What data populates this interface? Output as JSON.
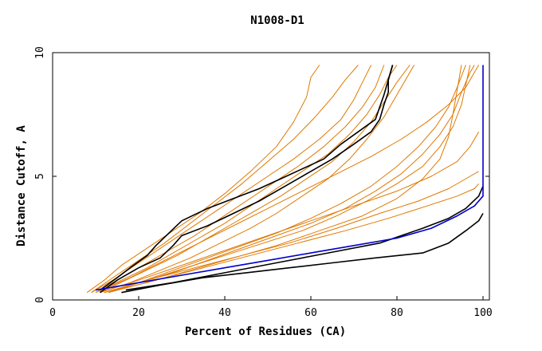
{
  "chart_data": {
    "type": "line",
    "title": "N1008-D1",
    "xlabel": "Percent of Residues (CA)",
    "ylabel": "Distance Cutoff, A",
    "xlim": [
      0,
      100
    ],
    "ylim": [
      0,
      10
    ],
    "xticks": [
      0,
      20,
      40,
      60,
      80,
      100
    ],
    "yticks": [
      0,
      5,
      10
    ],
    "grid": false,
    "colors": {
      "orange": "#e07800",
      "black": "#000000",
      "blue": "#0000cc"
    },
    "series": [
      {
        "name": "orange-1",
        "color": "orange",
        "points": [
          [
            8,
            0.3
          ],
          [
            12,
            0.8
          ],
          [
            16,
            1.4
          ],
          [
            22,
            2.1
          ],
          [
            28,
            2.8
          ],
          [
            34,
            3.5
          ],
          [
            40,
            4.3
          ],
          [
            46,
            5.2
          ],
          [
            52,
            6.2
          ],
          [
            56,
            7.2
          ],
          [
            59,
            8.2
          ],
          [
            60,
            9.0
          ],
          [
            62,
            9.5
          ]
        ]
      },
      {
        "name": "orange-2",
        "color": "orange",
        "points": [
          [
            9,
            0.3
          ],
          [
            14,
            0.9
          ],
          [
            20,
            1.6
          ],
          [
            26,
            2.3
          ],
          [
            32,
            3.1
          ],
          [
            38,
            3.9
          ],
          [
            44,
            4.7
          ],
          [
            50,
            5.6
          ],
          [
            56,
            6.5
          ],
          [
            61,
            7.4
          ],
          [
            65,
            8.2
          ],
          [
            68,
            8.9
          ],
          [
            71,
            9.5
          ]
        ]
      },
      {
        "name": "orange-3",
        "color": "orange",
        "points": [
          [
            9,
            0.3
          ],
          [
            14,
            0.8
          ],
          [
            20,
            1.5
          ],
          [
            26,
            2.2
          ],
          [
            32,
            2.9
          ],
          [
            38,
            3.6
          ],
          [
            44,
            4.3
          ],
          [
            50,
            5.0
          ],
          [
            56,
            5.7
          ],
          [
            62,
            6.5
          ],
          [
            67,
            7.3
          ],
          [
            70,
            8.1
          ],
          [
            72,
            8.8
          ],
          [
            74,
            9.5
          ]
        ]
      },
      {
        "name": "orange-4",
        "color": "orange",
        "points": [
          [
            10,
            0.3
          ],
          [
            15,
            0.8
          ],
          [
            21,
            1.4
          ],
          [
            27,
            2.0
          ],
          [
            33,
            2.6
          ],
          [
            39,
            3.3
          ],
          [
            45,
            4.0
          ],
          [
            51,
            4.7
          ],
          [
            57,
            5.4
          ],
          [
            63,
            6.2
          ],
          [
            68,
            7.0
          ],
          [
            72,
            7.8
          ],
          [
            75,
            8.6
          ],
          [
            77,
            9.5
          ]
        ]
      },
      {
        "name": "orange-5",
        "color": "orange",
        "points": [
          [
            10,
            0.3
          ],
          [
            16,
            0.8
          ],
          [
            22,
            1.3
          ],
          [
            28,
            1.9
          ],
          [
            34,
            2.5
          ],
          [
            40,
            3.1
          ],
          [
            46,
            3.8
          ],
          [
            52,
            4.5
          ],
          [
            58,
            5.2
          ],
          [
            64,
            5.9
          ],
          [
            69,
            6.7
          ],
          [
            73,
            7.5
          ],
          [
            76,
            8.3
          ],
          [
            78,
            9.0
          ],
          [
            80,
            9.5
          ]
        ]
      },
      {
        "name": "orange-6",
        "color": "orange",
        "points": [
          [
            11,
            0.3
          ],
          [
            17,
            0.8
          ],
          [
            23,
            1.3
          ],
          [
            29,
            1.8
          ],
          [
            35,
            2.4
          ],
          [
            41,
            3.0
          ],
          [
            47,
            3.6
          ],
          [
            53,
            4.2
          ],
          [
            59,
            4.9
          ],
          [
            65,
            5.6
          ],
          [
            70,
            6.4
          ],
          [
            74,
            7.2
          ],
          [
            77,
            8.0
          ],
          [
            80,
            8.8
          ],
          [
            83,
            9.5
          ]
        ]
      },
      {
        "name": "orange-7",
        "color": "orange",
        "points": [
          [
            11,
            0.3
          ],
          [
            18,
            0.7
          ],
          [
            25,
            1.2
          ],
          [
            32,
            1.7
          ],
          [
            39,
            2.3
          ],
          [
            46,
            2.9
          ],
          [
            52,
            3.5
          ],
          [
            58,
            4.2
          ],
          [
            64,
            4.9
          ],
          [
            69,
            5.7
          ],
          [
            73,
            6.5
          ],
          [
            77,
            7.4
          ],
          [
            80,
            8.3
          ],
          [
            83,
            9.2
          ],
          [
            84,
            9.5
          ]
        ]
      },
      {
        "name": "orange-8",
        "color": "orange",
        "points": [
          [
            12,
            0.3
          ],
          [
            20,
            0.7
          ],
          [
            28,
            1.2
          ],
          [
            36,
            1.7
          ],
          [
            44,
            2.2
          ],
          [
            52,
            2.7
          ],
          [
            60,
            3.3
          ],
          [
            67,
            3.9
          ],
          [
            74,
            4.6
          ],
          [
            80,
            5.4
          ],
          [
            85,
            6.2
          ],
          [
            89,
            7.0
          ],
          [
            92,
            7.8
          ],
          [
            94,
            8.6
          ],
          [
            96,
            9.5
          ]
        ]
      },
      {
        "name": "orange-9",
        "color": "orange",
        "points": [
          [
            12,
            0.3
          ],
          [
            20,
            0.7
          ],
          [
            28,
            1.1
          ],
          [
            36,
            1.6
          ],
          [
            44,
            2.1
          ],
          [
            52,
            2.6
          ],
          [
            60,
            3.1
          ],
          [
            68,
            3.7
          ],
          [
            75,
            4.4
          ],
          [
            81,
            5.1
          ],
          [
            86,
            5.9
          ],
          [
            90,
            6.7
          ],
          [
            93,
            7.5
          ],
          [
            95,
            8.4
          ],
          [
            97,
            9.2
          ],
          [
            98,
            9.5
          ]
        ]
      },
      {
        "name": "orange-10",
        "color": "orange",
        "points": [
          [
            13,
            0.3
          ],
          [
            22,
            0.8
          ],
          [
            31,
            1.3
          ],
          [
            40,
            1.8
          ],
          [
            49,
            2.3
          ],
          [
            58,
            2.8
          ],
          [
            66,
            3.4
          ],
          [
            73,
            4.0
          ],
          [
            80,
            4.7
          ],
          [
            86,
            5.4
          ],
          [
            90,
            6.2
          ],
          [
            93,
            7.0
          ],
          [
            95,
            7.9
          ],
          [
            96,
            8.7
          ],
          [
            97,
            9.5
          ]
        ]
      },
      {
        "name": "orange-11",
        "color": "orange",
        "points": [
          [
            12,
            0.3
          ],
          [
            22,
            0.7
          ],
          [
            32,
            1.2
          ],
          [
            42,
            1.7
          ],
          [
            52,
            2.2
          ],
          [
            62,
            2.8
          ],
          [
            72,
            3.4
          ],
          [
            80,
            4.1
          ],
          [
            86,
            4.9
          ],
          [
            90,
            5.7
          ],
          [
            92,
            6.6
          ],
          [
            93,
            7.5
          ],
          [
            94,
            8.5
          ],
          [
            95,
            9.5
          ]
        ]
      },
      {
        "name": "orange-12",
        "color": "orange",
        "points": [
          [
            13,
            0.3
          ],
          [
            24,
            0.8
          ],
          [
            35,
            1.3
          ],
          [
            46,
            1.8
          ],
          [
            57,
            2.3
          ],
          [
            68,
            2.8
          ],
          [
            78,
            3.3
          ],
          [
            87,
            3.8
          ],
          [
            94,
            4.2
          ],
          [
            98,
            4.5
          ],
          [
            99,
            4.7
          ]
        ]
      },
      {
        "name": "orange-13",
        "color": "orange",
        "points": [
          [
            12,
            0.3
          ],
          [
            22,
            0.8
          ],
          [
            33,
            1.3
          ],
          [
            44,
            1.8
          ],
          [
            55,
            2.3
          ],
          [
            66,
            2.9
          ],
          [
            76,
            3.5
          ],
          [
            85,
            4.0
          ],
          [
            92,
            4.5
          ],
          [
            97,
            5.0
          ],
          [
            99,
            5.2
          ]
        ]
      },
      {
        "name": "orange-14",
        "color": "orange",
        "points": [
          [
            11,
            0.3
          ],
          [
            20,
            0.8
          ],
          [
            30,
            1.4
          ],
          [
            40,
            2.0
          ],
          [
            50,
            2.6
          ],
          [
            60,
            3.2
          ],
          [
            70,
            3.8
          ],
          [
            80,
            4.4
          ],
          [
            88,
            5.0
          ],
          [
            94,
            5.6
          ],
          [
            97,
            6.2
          ],
          [
            99,
            6.8
          ]
        ]
      },
      {
        "name": "orange-15",
        "color": "orange",
        "points": [
          [
            10,
            0.3
          ],
          [
            18,
            0.9
          ],
          [
            26,
            1.6
          ],
          [
            34,
            2.3
          ],
          [
            42,
            3.0
          ],
          [
            50,
            3.7
          ],
          [
            58,
            4.4
          ],
          [
            66,
            5.1
          ],
          [
            74,
            5.8
          ],
          [
            81,
            6.5
          ],
          [
            87,
            7.2
          ],
          [
            92,
            7.9
          ],
          [
            96,
            8.6
          ],
          [
            98,
            9.2
          ],
          [
            99,
            9.5
          ]
        ]
      },
      {
        "name": "black-1",
        "color": "black",
        "points": [
          [
            11,
            0.3
          ],
          [
            15,
            0.8
          ],
          [
            20,
            1.3
          ],
          [
            25,
            1.7
          ],
          [
            28,
            2.2
          ],
          [
            30,
            2.6
          ],
          [
            36,
            3.0
          ],
          [
            42,
            3.5
          ],
          [
            48,
            4.0
          ],
          [
            54,
            4.6
          ],
          [
            60,
            5.2
          ],
          [
            65,
            5.7
          ],
          [
            70,
            6.3
          ],
          [
            74,
            6.8
          ],
          [
            76,
            7.3
          ],
          [
            77,
            7.9
          ],
          [
            78,
            8.4
          ],
          [
            78,
            8.9
          ],
          [
            79,
            9.5
          ]
        ]
      },
      {
        "name": "black-2",
        "color": "black",
        "points": [
          [
            11,
            0.4
          ],
          [
            15,
            0.9
          ],
          [
            18,
            1.3
          ],
          [
            22,
            1.8
          ],
          [
            24,
            2.2
          ],
          [
            27,
            2.7
          ],
          [
            30,
            3.2
          ],
          [
            36,
            3.7
          ],
          [
            42,
            4.1
          ],
          [
            48,
            4.5
          ],
          [
            53,
            4.9
          ],
          [
            58,
            5.3
          ],
          [
            63,
            5.7
          ],
          [
            67,
            6.3
          ],
          [
            71,
            6.8
          ],
          [
            75,
            7.3
          ],
          [
            76,
            7.8
          ],
          [
            77,
            8.3
          ],
          [
            78,
            8.9
          ],
          [
            79,
            9.5
          ]
        ]
      },
      {
        "name": "black-3",
        "color": "black",
        "points": [
          [
            16,
            0.3
          ],
          [
            25,
            0.6
          ],
          [
            35,
            0.9
          ],
          [
            45,
            1.1
          ],
          [
            55,
            1.3
          ],
          [
            65,
            1.5
          ],
          [
            75,
            1.7
          ],
          [
            86,
            1.9
          ],
          [
            92,
            2.3
          ],
          [
            96,
            2.8
          ],
          [
            99,
            3.2
          ],
          [
            100,
            3.5
          ]
        ]
      },
      {
        "name": "black-4",
        "color": "black",
        "points": [
          [
            17,
            0.4
          ],
          [
            28,
            0.7
          ],
          [
            40,
            1.1
          ],
          [
            52,
            1.5
          ],
          [
            64,
            1.9
          ],
          [
            76,
            2.3
          ],
          [
            86,
            2.9
          ],
          [
            92,
            3.3
          ],
          [
            96,
            3.7
          ],
          [
            99,
            4.2
          ],
          [
            100,
            4.6
          ]
        ]
      },
      {
        "name": "blue-1",
        "color": "blue",
        "points": [
          [
            10,
            0.4
          ],
          [
            20,
            0.7
          ],
          [
            30,
            1.0
          ],
          [
            40,
            1.3
          ],
          [
            50,
            1.6
          ],
          [
            60,
            1.9
          ],
          [
            70,
            2.2
          ],
          [
            80,
            2.5
          ],
          [
            88,
            2.9
          ],
          [
            94,
            3.4
          ],
          [
            98,
            3.8
          ],
          [
            100,
            4.2
          ],
          [
            100,
            5.0
          ],
          [
            100,
            7.0
          ],
          [
            100,
            9.5
          ]
        ]
      }
    ]
  }
}
